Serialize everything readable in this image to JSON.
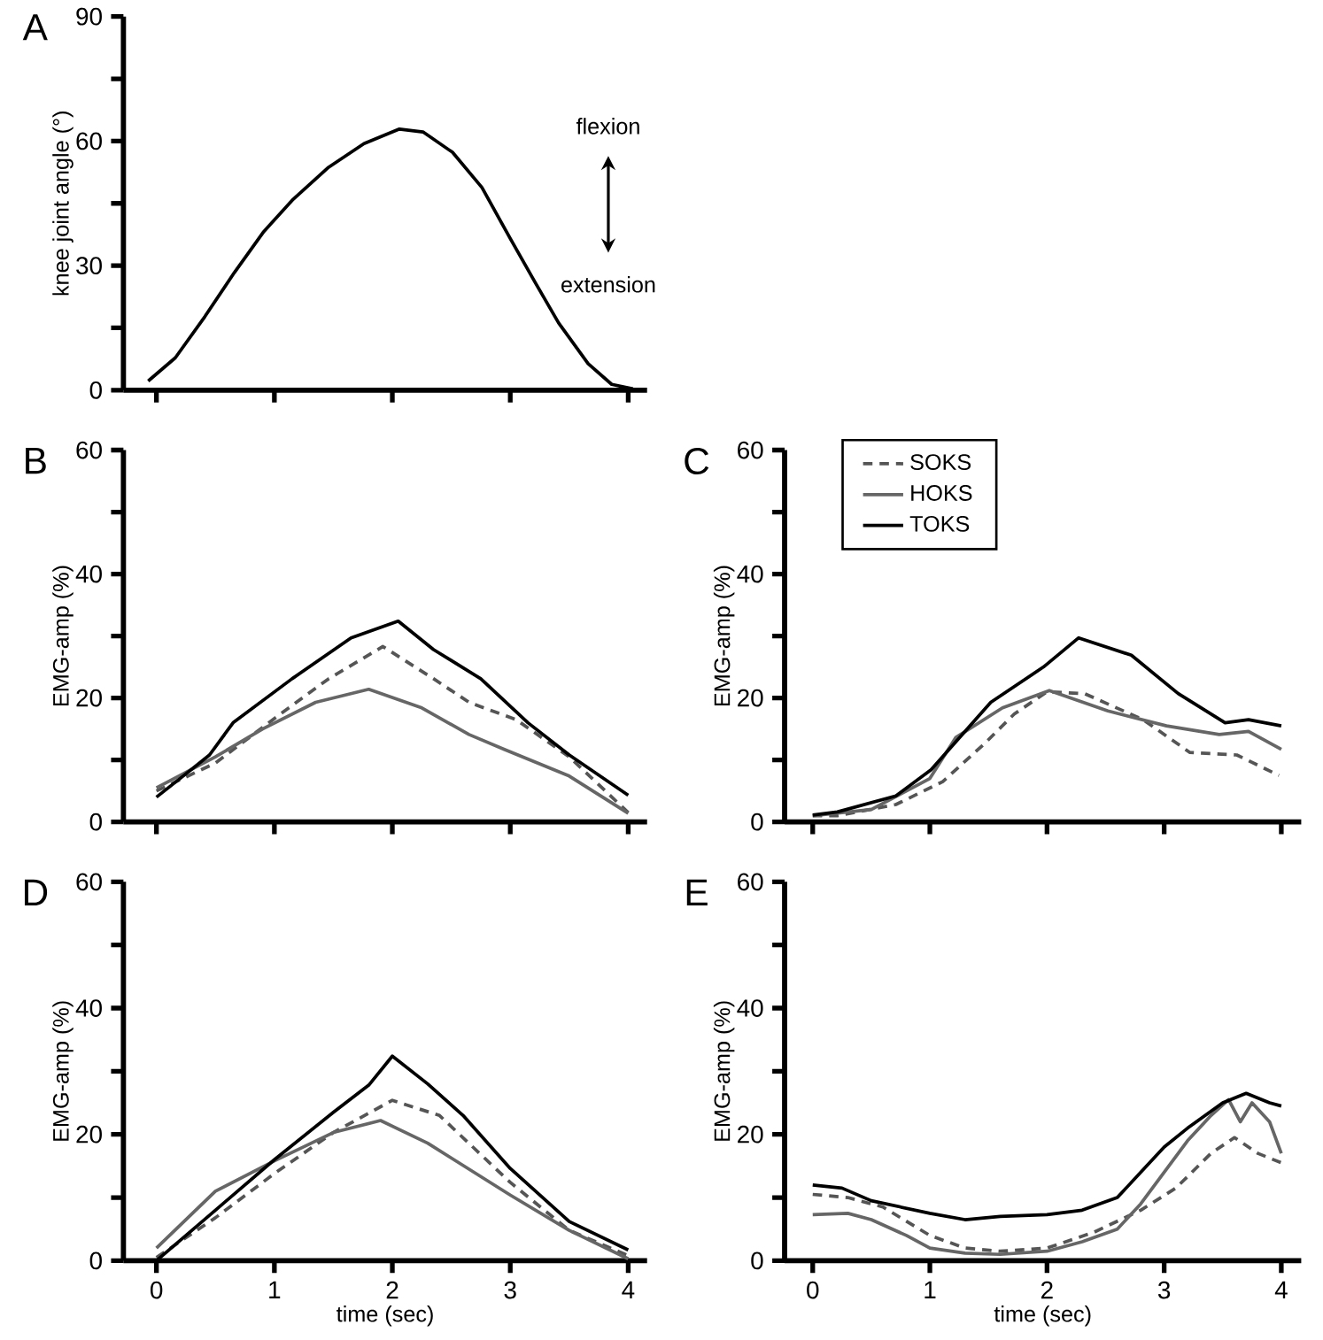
{
  "chart_data": [
    {
      "type": "line",
      "title": "A",
      "ylabel": "knee joint angle (°)",
      "annotations": [
        "flexion",
        "extension"
      ],
      "color": "#000000",
      "tick_labels": "y",
      "xlim": [
        -0.28,
        4.16
      ],
      "ylim": [
        0,
        90
      ],
      "xticks": [
        {
          "value": 0,
          "label": null
        },
        {
          "value": 1,
          "label": null
        },
        {
          "value": 2,
          "label": null
        },
        {
          "value": 3,
          "label": null
        },
        {
          "value": 4,
          "label": null
        }
      ],
      "yticks": [
        0,
        {
          "value": 15,
          "label": null
        },
        30,
        {
          "value": 45,
          "label": null
        },
        60,
        {
          "value": 75,
          "label": null
        },
        90
      ],
      "x": [
        -0.07,
        0.16,
        0.41,
        0.66,
        0.91,
        1.16,
        1.46,
        1.76,
        2.06,
        2.26,
        2.51,
        2.76,
        3.01,
        3.21,
        3.41,
        3.66,
        3.86,
        4.04
      ],
      "values": [
        2.2,
        7.8,
        17.7,
        28.3,
        38.2,
        46,
        53.7,
        59.4,
        62.9,
        62.2,
        57.3,
        48.8,
        36,
        26,
        16.2,
        6.4,
        1.4,
        0.3
      ]
    },
    {
      "type": "line",
      "title": "B",
      "ylabel": "EMG-amp (%)",
      "tick_labels": "y",
      "xlim": [
        -0.28,
        4.16
      ],
      "ylim": [
        0,
        60
      ],
      "xticks": [
        {
          "value": 0,
          "label": null
        },
        {
          "value": 1,
          "label": null
        },
        {
          "value": 2,
          "label": null
        },
        {
          "value": 3,
          "label": null
        },
        {
          "value": 4,
          "label": null
        }
      ],
      "yticks": [
        0,
        {
          "value": 10,
          "label": null
        },
        20,
        {
          "value": 30,
          "label": null
        },
        40,
        {
          "value": 50,
          "label": null
        },
        60
      ],
      "series": [
        {
          "color": "#555555",
          "line_style": "dashed",
          "x": [
            0,
            0.5,
            1.05,
            1.46,
            1.92,
            2.35,
            2.65,
            3.05,
            3.5,
            4.0
          ],
          "values": [
            5,
            9.5,
            17.4,
            23.1,
            28.3,
            23.1,
            19.3,
            16.5,
            10.5,
            1.5
          ]
        },
        {
          "color": "#666666",
          "line_style": "solid",
          "x": [
            0,
            0.5,
            0.9,
            1.35,
            1.8,
            2.25,
            2.65,
            2.95,
            3.5,
            4.0
          ],
          "values": [
            5.5,
            10.5,
            15,
            19.3,
            21.4,
            18.4,
            14.1,
            11.7,
            7.4,
            1.4
          ]
        },
        {
          "color": "#000000",
          "line_style": "solid",
          "x": [
            0,
            0.2,
            0.45,
            0.65,
            1.15,
            1.65,
            2.05,
            2.35,
            2.75,
            3.15,
            3.5,
            4.0
          ],
          "values": [
            4,
            7,
            10.8,
            16,
            23.1,
            29.7,
            32.4,
            27.8,
            23.1,
            16,
            10.8,
            4.3
          ]
        }
      ]
    },
    {
      "type": "line",
      "title": "C",
      "ylabel": "EMG-amp (%)",
      "legend": "top left",
      "tick_labels": "y",
      "xlim": [
        -0.24,
        4.17
      ],
      "ylim": [
        0,
        60
      ],
      "xticks": [
        {
          "value": 0,
          "label": null
        },
        {
          "value": 1,
          "label": null
        },
        {
          "value": 2,
          "label": null
        },
        {
          "value": 3,
          "label": null
        },
        {
          "value": 4,
          "label": null
        }
      ],
      "yticks": [
        0,
        {
          "value": 10,
          "label": null
        },
        20,
        {
          "value": 30,
          "label": null
        },
        40,
        {
          "value": 50,
          "label": null
        },
        60
      ],
      "series": [
        {
          "name": "SOKS",
          "color": "#555555",
          "line_style": "dashed",
          "x": [
            0,
            0.21,
            0.71,
            1.11,
            1.47,
            1.72,
            2.0,
            2.32,
            2.82,
            3.22,
            3.62,
            3.98
          ],
          "values": [
            1,
            1,
            2.8,
            6.5,
            12.7,
            17.4,
            21,
            20.7,
            16.5,
            11.2,
            10.8,
            7.5
          ]
        },
        {
          "name": "HOKS",
          "color": "#666666",
          "line_style": "solid",
          "x": [
            0,
            0.5,
            1.0,
            1.22,
            1.62,
            2.02,
            2.52,
            3.02,
            3.47,
            3.72,
            4.0
          ],
          "values": [
            1,
            2,
            7,
            13.6,
            18.4,
            21.2,
            17.9,
            15.5,
            14.1,
            14.6,
            11.7
          ]
        },
        {
          "name": "TOKS",
          "color": "#000000",
          "line_style": "solid",
          "x": [
            0,
            0.21,
            0.71,
            1.01,
            1.52,
            1.97,
            2.27,
            2.72,
            3.12,
            3.52,
            3.72,
            4.0
          ],
          "values": [
            1.1,
            1.6,
            4.2,
            8.4,
            19.3,
            25,
            29.7,
            26.9,
            20.7,
            16,
            16.5,
            15.5
          ]
        }
      ]
    },
    {
      "type": "line",
      "title": "D",
      "xlabel": "time (sec)",
      "ylabel": "EMG-amp (%)",
      "xlim": [
        -0.28,
        4.16
      ],
      "ylim": [
        0,
        60
      ],
      "xticks": [
        0,
        1,
        2,
        3,
        4
      ],
      "yticks": [
        0,
        {
          "value": 10,
          "label": null
        },
        20,
        {
          "value": 30,
          "label": null
        },
        40,
        {
          "value": 50,
          "label": null
        },
        60
      ],
      "series": [
        {
          "color": "#555555",
          "line_style": "dashed",
          "x": [
            0,
            0.5,
            1.0,
            1.5,
            2.0,
            2.4,
            3.0,
            3.5,
            4.0
          ],
          "values": [
            0.5,
            6.8,
            13.8,
            20.3,
            25.4,
            23,
            12.4,
            4.8,
            0.8
          ]
        },
        {
          "color": "#666666",
          "line_style": "solid",
          "x": [
            0,
            0.5,
            1.0,
            1.5,
            1.9,
            2.3,
            3.0,
            3.5,
            4.0
          ],
          "values": [
            2,
            11,
            15.8,
            20.3,
            22.2,
            18.6,
            10.4,
            4.8,
            0.3
          ]
        },
        {
          "color": "#000000",
          "line_style": "solid",
          "x": [
            0,
            0.5,
            1.0,
            1.5,
            1.8,
            2.0,
            2.3,
            2.6,
            3.0,
            3.5,
            4.0
          ],
          "values": [
            0,
            8,
            16,
            23.5,
            27.8,
            32.4,
            28,
            23,
            14.6,
            6.2,
            1.7
          ]
        }
      ]
    },
    {
      "type": "line",
      "title": "E",
      "xlabel": "time (sec)",
      "ylabel": "EMG-amp (%)",
      "xlim": [
        -0.24,
        4.17
      ],
      "ylim": [
        0,
        60
      ],
      "xticks": [
        0,
        1,
        2,
        3,
        4
      ],
      "yticks": [
        0,
        {
          "value": 10,
          "label": null
        },
        20,
        {
          "value": 30,
          "label": null
        },
        40,
        {
          "value": 50,
          "label": null
        },
        60
      ],
      "series": [
        {
          "color": "#555555",
          "line_style": "dashed",
          "x": [
            0,
            0.3,
            0.6,
            1.0,
            1.3,
            1.6,
            2.0,
            2.4,
            2.8,
            3.1,
            3.4,
            3.6,
            3.8,
            4.0
          ],
          "values": [
            10.5,
            10,
            8.5,
            4,
            2,
            1.5,
            2,
            4.5,
            8,
            11.5,
            17,
            19.5,
            17,
            15.5
          ]
        },
        {
          "color": "#666666",
          "line_style": "solid",
          "x": [
            0,
            0.3,
            0.5,
            0.8,
            1.0,
            1.3,
            1.6,
            2.0,
            2.3,
            2.6,
            2.8,
            3.0,
            3.2,
            3.4,
            3.55,
            3.65,
            3.75,
            3.9,
            4.0
          ],
          "values": [
            7.3,
            7.5,
            6.5,
            4,
            2,
            1.2,
            1,
            1.5,
            3,
            5,
            9,
            14,
            19,
            23,
            25.5,
            22,
            25,
            22,
            17
          ]
        },
        {
          "color": "#000000",
          "line_style": "solid",
          "x": [
            0,
            0.25,
            0.5,
            1.0,
            1.3,
            1.6,
            2.0,
            2.3,
            2.6,
            2.8,
            3.0,
            3.2,
            3.5,
            3.7,
            3.9,
            4.0
          ],
          "values": [
            12,
            11.5,
            9.5,
            7.5,
            6.5,
            7,
            7.3,
            8,
            10,
            14,
            18,
            21,
            25,
            26.5,
            25,
            24.5
          ]
        }
      ]
    }
  ]
}
